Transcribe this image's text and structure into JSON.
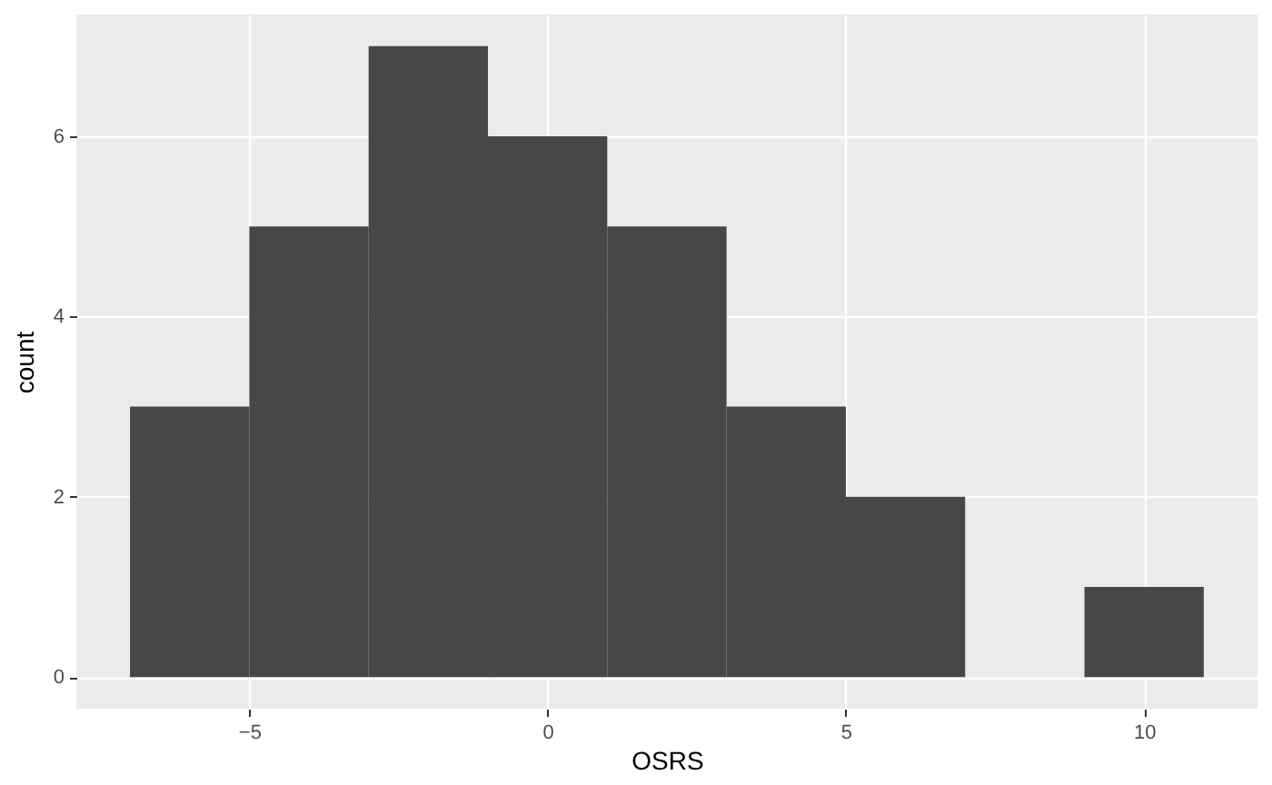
{
  "chart_data": {
    "type": "histogram",
    "xlabel": "OSRS",
    "ylabel": "count",
    "bins": [
      -7,
      -5,
      -3,
      -1,
      1,
      3,
      5,
      7,
      9,
      11
    ],
    "values": [
      3,
      5,
      7,
      6,
      5,
      3,
      2,
      0,
      1
    ],
    "color": "#474747",
    "xlim": [
      -7.9,
      11.9
    ],
    "ylim": [
      -0.35,
      7.35
    ],
    "xticks": [
      -5,
      0,
      5,
      10
    ],
    "yticks": [
      0,
      2,
      4,
      6
    ],
    "grid": true
  }
}
